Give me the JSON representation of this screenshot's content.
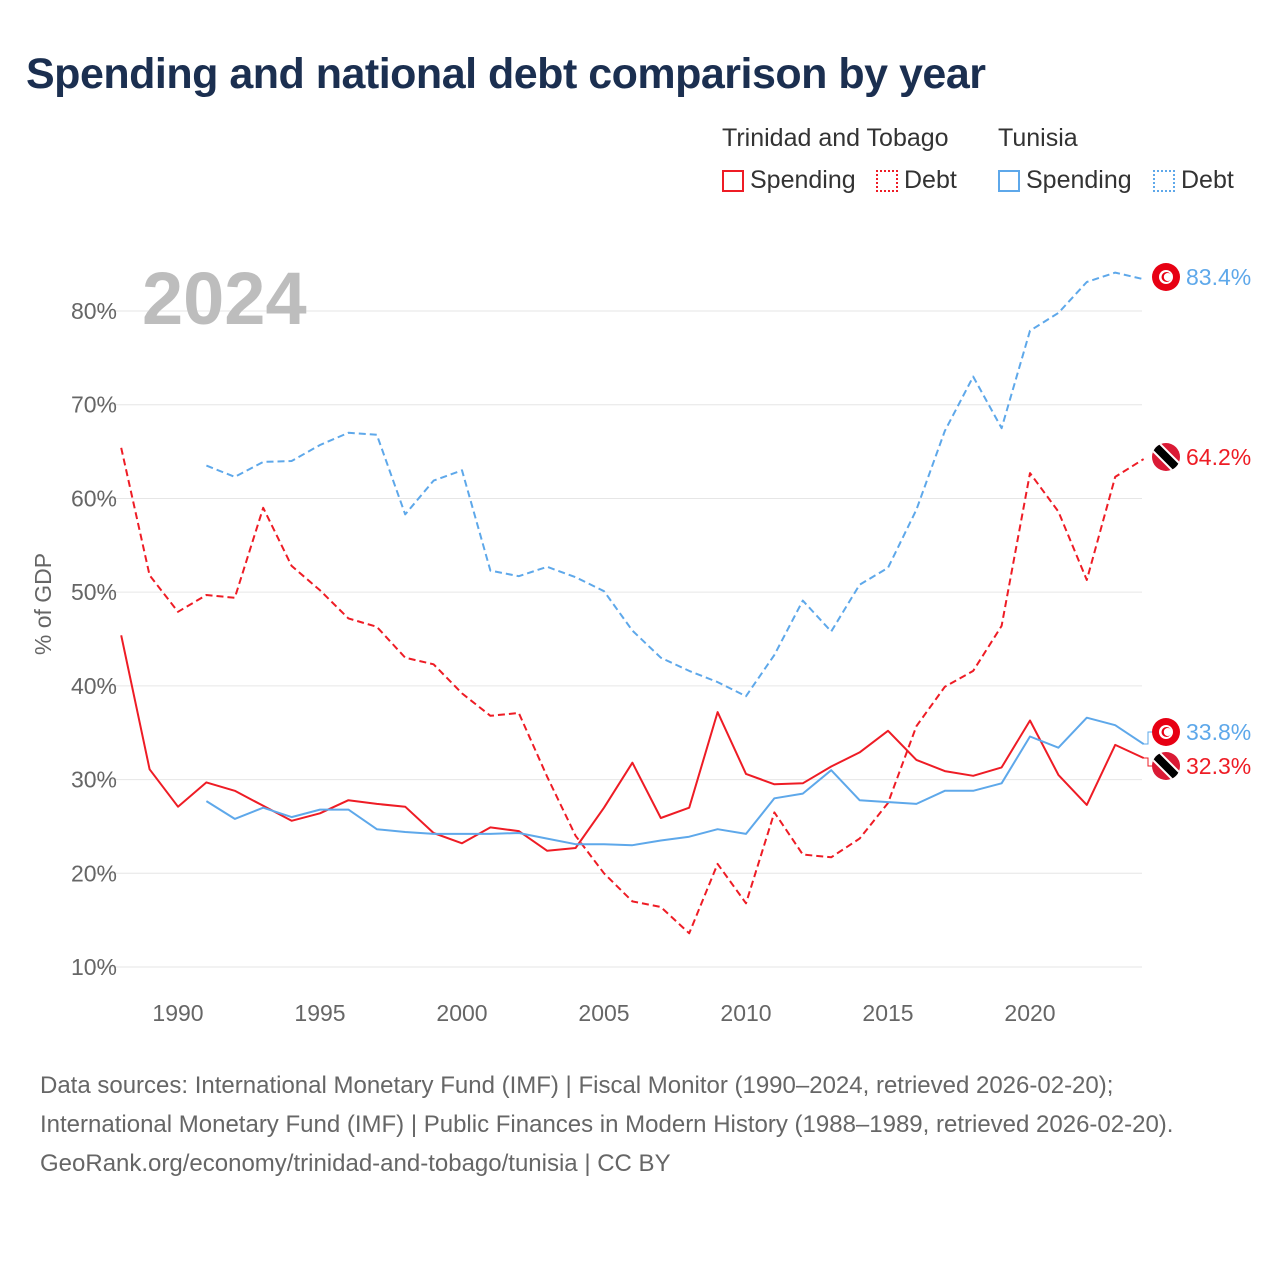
{
  "title": "Spending and national debt comparison by year",
  "year_label": "2024",
  "legend": {
    "groups": [
      {
        "name": "Trinidad and Tobago",
        "items": [
          {
            "label": "Spending",
            "style": "solid"
          },
          {
            "label": "Debt",
            "style": "dotted"
          }
        ]
      },
      {
        "name": "Tunisia",
        "items": [
          {
            "label": "Spending",
            "style": "solid"
          },
          {
            "label": "Debt",
            "style": "dotted"
          }
        ]
      }
    ]
  },
  "sources": {
    "line1": "Data sources: International Monetary Fund (IMF) | Fiscal Monitor (1990–2024, retrieved 2026-02-20); International Monetary Fund (IMF) | Public Finances in Modern History (1988–1989, retrieved 2026-02-20).",
    "line2": "GeoRank.org/economy/trinidad-and-tobago/tunisia | CC BY"
  },
  "chart_data": {
    "type": "line",
    "title": "Spending and national debt comparison by year",
    "xlabel": "",
    "ylabel": "% of GDP",
    "xlim": [
      1988,
      2024
    ],
    "ylim": [
      10,
      85
    ],
    "x_ticks": [
      "1990",
      "1995",
      "2000",
      "2005",
      "2010",
      "2015",
      "2020"
    ],
    "y_ticks": [
      "10%",
      "20%",
      "30%",
      "40%",
      "50%",
      "60%",
      "70%",
      "80%"
    ],
    "grid": true,
    "series": [
      {
        "name": "Trinidad and Tobago Spending",
        "color": "#ee1c25",
        "dash": false,
        "end_label": "32.3%",
        "flag": "trinidad-and-tobago",
        "start": 1988,
        "values": [
          45.4,
          31.1,
          27.1,
          29.7,
          28.8,
          27.2,
          25.6,
          26.4,
          27.8,
          27.4,
          27.1,
          24.3,
          23.2,
          24.9,
          24.5,
          22.4,
          22.7,
          27.0,
          31.8,
          25.9,
          27.0,
          37.2,
          30.6,
          29.5,
          29.6,
          31.4,
          32.9,
          35.2,
          32.1,
          30.9,
          30.4,
          31.3,
          36.3,
          30.5,
          27.3,
          33.7,
          32.3
        ]
      },
      {
        "name": "Trinidad and Tobago Debt",
        "color": "#ee1c25",
        "dash": true,
        "end_label": "64.2%",
        "flag": "trinidad-and-tobago",
        "start": 1988,
        "values": [
          65.4,
          51.8,
          47.9,
          49.7,
          49.4,
          59.0,
          52.8,
          50.2,
          47.2,
          46.3,
          43.0,
          42.3,
          39.2,
          36.8,
          37.1,
          30.3,
          24.0,
          20.0,
          17.0,
          16.4,
          13.6,
          21.0,
          16.8,
          26.5,
          22.0,
          21.7,
          23.7,
          27.5,
          35.7,
          39.9,
          41.6,
          46.4,
          62.7,
          58.6,
          51.3,
          62.3,
          64.2
        ]
      },
      {
        "name": "Tunisia Spending",
        "color": "#5ea8ea",
        "dash": false,
        "end_label": "33.8%",
        "flag": "tunisia",
        "start": 1991,
        "values": [
          27.7,
          25.8,
          27.0,
          26.0,
          26.8,
          26.8,
          24.7,
          24.4,
          24.2,
          24.2,
          24.2,
          24.3,
          23.7,
          23.1,
          23.1,
          23.0,
          23.5,
          23.9,
          24.7,
          24.2,
          28.0,
          28.5,
          31.0,
          27.8,
          27.6,
          27.4,
          28.8,
          28.8,
          29.6,
          34.6,
          33.4,
          36.6,
          35.8,
          33.8
        ]
      },
      {
        "name": "Tunisia Debt",
        "color": "#5ea8ea",
        "dash": true,
        "end_label": "83.4%",
        "flag": "tunisia",
        "start": 1991,
        "values": [
          63.5,
          62.3,
          63.9,
          64.0,
          65.7,
          67.0,
          66.8,
          58.3,
          61.9,
          63.0,
          52.3,
          51.7,
          52.7,
          51.6,
          50.1,
          45.9,
          43.0,
          41.6,
          40.4,
          38.9,
          43.3,
          49.1,
          45.8,
          50.8,
          52.6,
          58.8,
          67.2,
          73.0,
          67.5,
          77.9,
          79.8,
          83.1,
          84.1,
          83.4
        ]
      }
    ]
  }
}
